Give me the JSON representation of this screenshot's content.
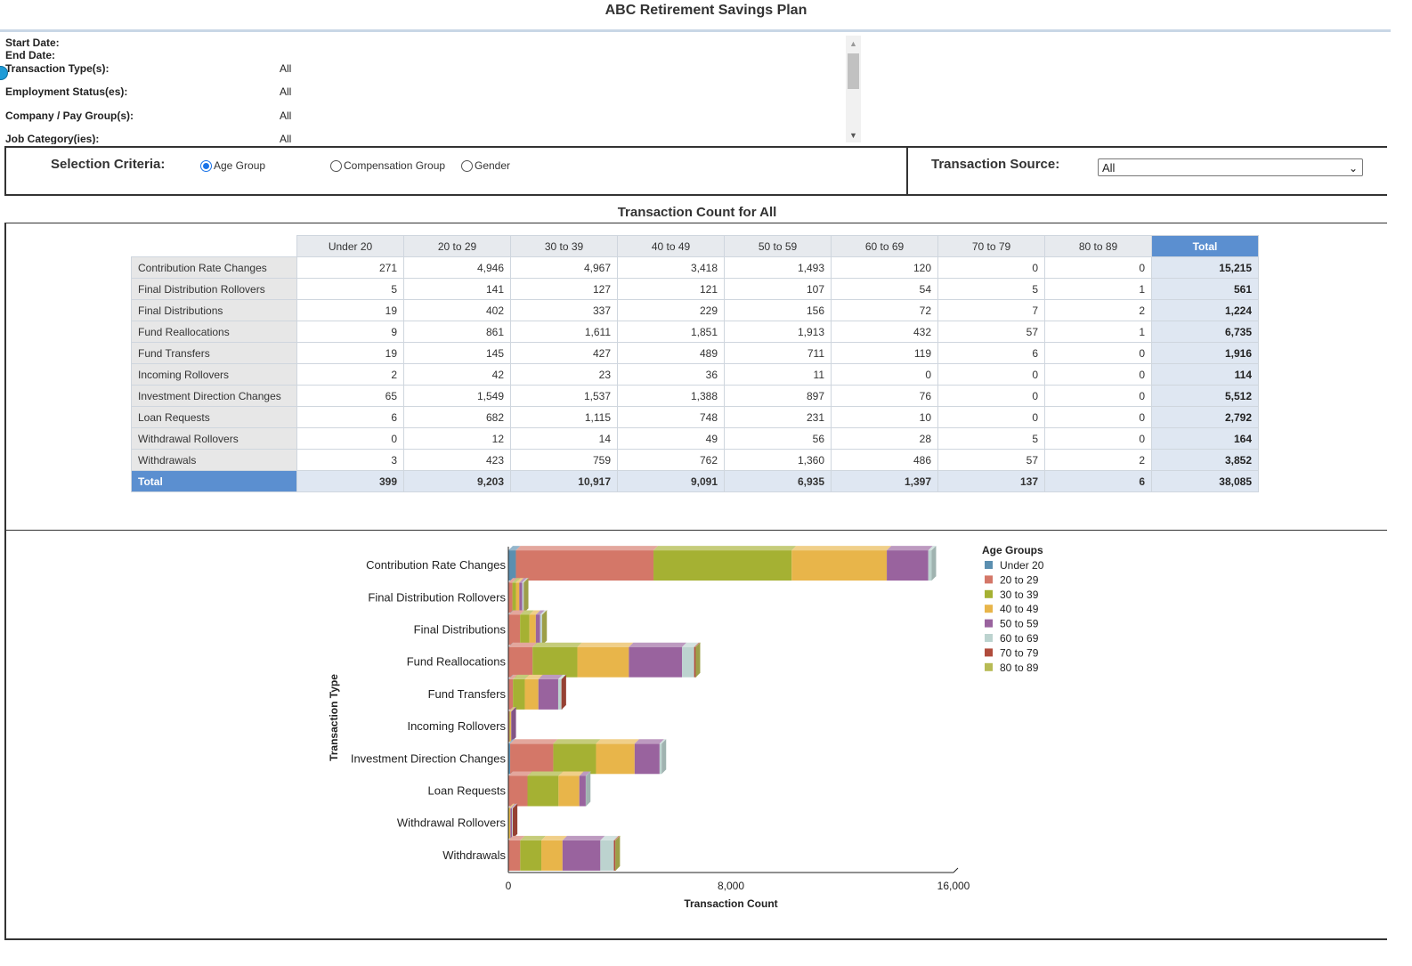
{
  "app_title": "ABC Retirement Savings Plan",
  "parameters": [
    {
      "label": "Start Date:",
      "value": ""
    },
    {
      "label": "End Date:",
      "value": ""
    },
    {
      "label": "Transaction Type(s):",
      "value": "All"
    },
    {
      "label": "Employment Status(es):",
      "value": "All"
    },
    {
      "label": "Company / Pay Group(s):",
      "value": "All"
    },
    {
      "label": "Job Category(ies):",
      "value": "All"
    }
  ],
  "criteria": {
    "label": "Selection Criteria:",
    "options": [
      "Age Group",
      "Compensation Group",
      "Gender"
    ],
    "selected": "Age Group"
  },
  "source": {
    "label": "Transaction Source:",
    "value": "All"
  },
  "section_title": "Transaction Count for All",
  "table": {
    "columns": [
      "Under 20",
      "20 to 29",
      "30 to 39",
      "40 to 49",
      "50 to 59",
      "60 to 69",
      "70 to 79",
      "80 to 89",
      "Total"
    ],
    "rows": [
      {
        "label": "Contribution Rate Changes",
        "values": [
          "271",
          "4,946",
          "4,967",
          "3,418",
          "1,493",
          "120",
          "0",
          "0"
        ],
        "total": "15,215"
      },
      {
        "label": "Final Distribution Rollovers",
        "values": [
          "5",
          "141",
          "127",
          "121",
          "107",
          "54",
          "5",
          "1"
        ],
        "total": "561"
      },
      {
        "label": "Final Distributions",
        "values": [
          "19",
          "402",
          "337",
          "229",
          "156",
          "72",
          "7",
          "2"
        ],
        "total": "1,224"
      },
      {
        "label": "Fund Reallocations",
        "values": [
          "9",
          "861",
          "1,611",
          "1,851",
          "1,913",
          "432",
          "57",
          "1"
        ],
        "total": "6,735"
      },
      {
        "label": "Fund Transfers",
        "values": [
          "19",
          "145",
          "427",
          "489",
          "711",
          "119",
          "6",
          "0"
        ],
        "total": "1,916"
      },
      {
        "label": "Incoming Rollovers",
        "values": [
          "2",
          "42",
          "23",
          "36",
          "11",
          "0",
          "0",
          "0"
        ],
        "total": "114"
      },
      {
        "label": "Investment Direction Changes",
        "values": [
          "65",
          "1,549",
          "1,537",
          "1,388",
          "897",
          "76",
          "0",
          "0"
        ],
        "total": "5,512"
      },
      {
        "label": "Loan Requests",
        "values": [
          "6",
          "682",
          "1,115",
          "748",
          "231",
          "10",
          "0",
          "0"
        ],
        "total": "2,792"
      },
      {
        "label": "Withdrawal Rollovers",
        "values": [
          "0",
          "12",
          "14",
          "49",
          "56",
          "28",
          "5",
          "0"
        ],
        "total": "164"
      },
      {
        "label": "Withdrawals",
        "values": [
          "3",
          "423",
          "759",
          "762",
          "1,360",
          "486",
          "57",
          "2"
        ],
        "total": "3,852"
      }
    ],
    "total_row": {
      "label": "Total",
      "values": [
        "399",
        "9,203",
        "10,917",
        "9,091",
        "6,935",
        "1,397",
        "137",
        "6"
      ],
      "total": "38,085"
    }
  },
  "chart_data": {
    "type": "bar",
    "orientation": "horizontal",
    "stacked": true,
    "title": "",
    "xlabel": "Transaction Count",
    "ylabel": "Transaction Type",
    "xlim": [
      0,
      16000
    ],
    "x_ticks": [
      "0",
      "8,000",
      "16,000"
    ],
    "x_tick_values": [
      0,
      8000,
      16000
    ],
    "legend_title": "Age Groups",
    "legend_position": "right",
    "categories": [
      "Contribution Rate Changes",
      "Final Distribution Rollovers",
      "Final Distributions",
      "Fund Reallocations",
      "Fund Transfers",
      "Incoming Rollovers",
      "Investment Direction Changes",
      "Loan Requests",
      "Withdrawal Rollovers",
      "Withdrawals"
    ],
    "series": [
      {
        "name": "Under 20",
        "color": "#5b8fb0",
        "values": [
          271,
          5,
          19,
          9,
          19,
          2,
          65,
          6,
          0,
          3
        ]
      },
      {
        "name": "20 to 29",
        "color": "#d47768",
        "values": [
          4946,
          141,
          402,
          861,
          145,
          42,
          1549,
          682,
          12,
          423
        ]
      },
      {
        "name": "30 to 39",
        "color": "#a5b133",
        "values": [
          4967,
          127,
          337,
          1611,
          427,
          23,
          1537,
          1115,
          14,
          759
        ]
      },
      {
        "name": "40 to 49",
        "color": "#e8b54a",
        "values": [
          3418,
          121,
          229,
          1851,
          489,
          36,
          1388,
          748,
          49,
          762
        ]
      },
      {
        "name": "50 to 59",
        "color": "#99639e",
        "values": [
          1493,
          107,
          156,
          1913,
          711,
          11,
          897,
          231,
          56,
          1360
        ]
      },
      {
        "name": "60 to 69",
        "color": "#bcd3cf",
        "values": [
          120,
          54,
          72,
          432,
          119,
          0,
          76,
          10,
          28,
          486
        ]
      },
      {
        "name": "70 to 79",
        "color": "#b04c3c",
        "values": [
          0,
          5,
          7,
          57,
          6,
          0,
          0,
          0,
          5,
          57
        ]
      },
      {
        "name": "80 to 89",
        "color": "#b7bb55",
        "values": [
          0,
          1,
          2,
          1,
          0,
          0,
          0,
          0,
          0,
          2
        ]
      }
    ]
  }
}
